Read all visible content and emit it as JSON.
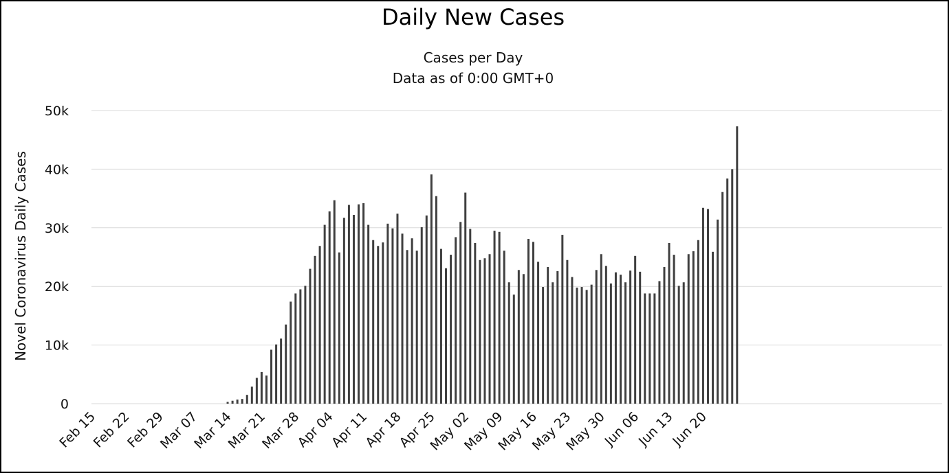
{
  "chart_data": {
    "type": "bar",
    "title": "Daily New Cases",
    "subtitle_lines": [
      "Cases per Day",
      "Data as of 0:00 GMT+0"
    ],
    "ylabel": "Novel Coronavirus Daily Cases",
    "xlabel": "",
    "ylim": [
      0,
      50000
    ],
    "yticks": [
      0,
      10000,
      20000,
      30000,
      40000,
      50000
    ],
    "ytick_labels": [
      "0",
      "10k",
      "20k",
      "30k",
      "40k",
      "50k"
    ],
    "grid": true,
    "legend": "none",
    "color": "#3f3f3f",
    "x_labels": [
      "Feb 15",
      "Feb 22",
      "Feb 29",
      "Mar 07",
      "Mar 14",
      "Mar 21",
      "Mar 28",
      "Apr 04",
      "Apr 11",
      "Apr 18",
      "Apr 25",
      "May 02",
      "May 09",
      "May 16",
      "May 23",
      "May 30",
      "Jun 06",
      "Jun 13",
      "Jun 20"
    ],
    "x_start": "Feb 15",
    "values": [
      0,
      0,
      0,
      0,
      0,
      0,
      0,
      0,
      0,
      0,
      0,
      0,
      0,
      0,
      0,
      0,
      0,
      0,
      0,
      0,
      0,
      0,
      0,
      0,
      0,
      0,
      0,
      0,
      300,
      500,
      700,
      800,
      1500,
      2900,
      4400,
      5400,
      4800,
      9200,
      10100,
      11100,
      13500,
      17400,
      18800,
      19500,
      20100,
      23000,
      25200,
      26900,
      30500,
      32800,
      34700,
      25800,
      31700,
      33900,
      32200,
      34000,
      34200,
      30500,
      27900,
      26900,
      27500,
      30700,
      29900,
      32400,
      29000,
      26200,
      28200,
      26100,
      30100,
      32100,
      39100,
      35400,
      26400,
      23100,
      25400,
      28400,
      31000,
      36000,
      29800,
      27400,
      24500,
      24800,
      25500,
      29500,
      29300,
      26100,
      20700,
      18600,
      22800,
      22100,
      28100,
      27600,
      24200,
      19900,
      23300,
      20700,
      22600,
      28800,
      24500,
      21600,
      19800,
      19900,
      19400,
      20300,
      22800,
      25500,
      23500,
      20500,
      22400,
      22000,
      20700,
      22700,
      25200,
      22500,
      18800,
      18800,
      18800,
      20900,
      23300,
      27400,
      25400,
      20100,
      20700,
      25500,
      26000,
      27900,
      33400,
      33200,
      25900,
      31400,
      36100,
      38400,
      40000,
      47300
    ]
  }
}
